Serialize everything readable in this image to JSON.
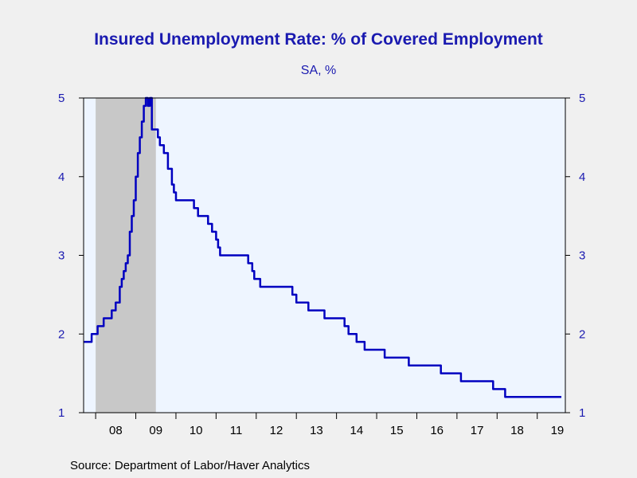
{
  "header": {
    "title": "Insured Unemployment Rate: % of Covered Employment",
    "subtitle": "SA, %"
  },
  "footer": {
    "source": "Source:  Department of Labor/Haver Analytics"
  },
  "colors": {
    "line": "#0000c0",
    "plot_background": "#eef5ff",
    "recession_shade": "#c8c8c8",
    "axis_text": "#1a1ab0"
  },
  "chart_data": {
    "type": "line",
    "title": "Insured Unemployment Rate: % of Covered Employment",
    "subtitle": "SA, %",
    "xlabel": "",
    "ylabel": "",
    "xlim": [
      2007.7,
      2019.7
    ],
    "ylim": [
      1,
      5
    ],
    "y_ticks": [
      1,
      2,
      3,
      4,
      5
    ],
    "x_tick_labels": [
      "08",
      "09",
      "10",
      "11",
      "12",
      "13",
      "14",
      "15",
      "16",
      "17",
      "18",
      "19"
    ],
    "x_tick_positions": [
      2008.5,
      2009.5,
      2010.5,
      2011.5,
      2012.5,
      2013.5,
      2014.5,
      2015.5,
      2016.5,
      2017.5,
      2018.5,
      2019.5
    ],
    "dual_y_axis": true,
    "grid": false,
    "recession_shading": [
      {
        "start": 2008.0,
        "end": 2009.5
      }
    ],
    "series": [
      {
        "x": [
          2007.7,
          2007.85,
          2007.9,
          2008.0,
          2008.05,
          2008.1,
          2008.2,
          2008.3,
          2008.4,
          2008.5,
          2008.6,
          2008.65,
          2008.7,
          2008.75,
          2008.8,
          2008.85,
          2008.9,
          2008.95,
          2009.0,
          2009.05,
          2009.1,
          2009.15,
          2009.2,
          2009.25,
          2009.3,
          2009.35,
          2009.4,
          2009.45,
          2009.5,
          2009.55,
          2009.6,
          2009.7,
          2009.8,
          2009.9,
          2009.95,
          2010.0,
          2010.05,
          2010.1,
          2010.3,
          2010.45,
          2010.5,
          2010.55,
          2010.7,
          2010.8,
          2010.9,
          2011.0,
          2011.05,
          2011.1,
          2011.3,
          2011.5,
          2011.6,
          2011.8,
          2011.9,
          2011.95,
          2012.1,
          2012.5,
          2012.8,
          2012.9,
          2013.0,
          2013.2,
          2013.3,
          2013.5,
          2013.7,
          2013.8,
          2013.9,
          2014.2,
          2014.3,
          2014.5,
          2014.7,
          2015.0,
          2015.2,
          2015.5,
          2015.8,
          2016.0,
          2016.4,
          2016.6,
          2016.9,
          2017.1,
          2017.5,
          2017.8,
          2017.9,
          2018.0,
          2018.2,
          2018.6,
          2019.0,
          2019.2,
          2019.4,
          2019.6
        ],
        "values": [
          1.9,
          1.9,
          2.0,
          2.0,
          2.1,
          2.1,
          2.2,
          2.2,
          2.3,
          2.4,
          2.6,
          2.7,
          2.8,
          2.9,
          3.0,
          3.3,
          3.5,
          3.7,
          4.0,
          4.3,
          4.5,
          4.7,
          4.9,
          5.0,
          4.9,
          5.0,
          4.6,
          4.6,
          4.6,
          4.5,
          4.4,
          4.3,
          4.1,
          3.9,
          3.8,
          3.7,
          3.7,
          3.7,
          3.7,
          3.6,
          3.6,
          3.5,
          3.5,
          3.4,
          3.3,
          3.2,
          3.1,
          3.0,
          3.0,
          3.0,
          3.0,
          2.9,
          2.8,
          2.7,
          2.6,
          2.6,
          2.6,
          2.5,
          2.4,
          2.4,
          2.3,
          2.3,
          2.2,
          2.2,
          2.2,
          2.1,
          2.0,
          1.9,
          1.8,
          1.8,
          1.7,
          1.7,
          1.6,
          1.6,
          1.6,
          1.5,
          1.5,
          1.4,
          1.4,
          1.4,
          1.3,
          1.3,
          1.2,
          1.2,
          1.2,
          1.2,
          1.2,
          1.2
        ]
      }
    ]
  }
}
